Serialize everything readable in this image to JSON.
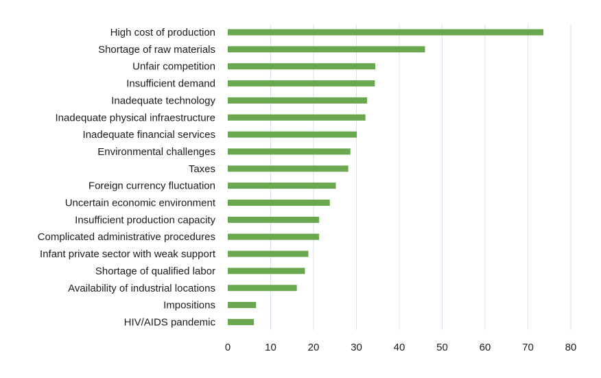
{
  "chart_data": {
    "type": "bar",
    "orientation": "horizontal",
    "title": "",
    "xlabel": "",
    "ylabel": "",
    "categories": [
      "High cost of production",
      "Shortage of raw materials",
      "Unfair competition",
      "Insufficient demand",
      "Inadequate technology",
      "Inadequate physical infraestructure",
      "Inadequate financial services",
      "Environmental challenges",
      "Taxes",
      "Foreign currency fluctuation",
      "Uncertain economic environment",
      "Insufficient production capacity",
      "Complicated administrative procedures",
      "Infant private sector with weak support",
      "Shortage of qualified labor",
      "Availability of industrial locations",
      "Impositions",
      "HIV/AIDS pandemic"
    ],
    "values": [
      73.6,
      46.0,
      34.4,
      34.3,
      32.5,
      32.1,
      30.1,
      28.6,
      28.1,
      25.2,
      23.8,
      21.3,
      21.3,
      18.8,
      18.0,
      16.1,
      6.6,
      6.1
    ],
    "xlim": [
      0,
      80
    ],
    "xticks": [
      0,
      10,
      20,
      30,
      40,
      50,
      60,
      70,
      80
    ],
    "grid": "vertical",
    "legend": "none",
    "bar_color": "#6aa84f"
  }
}
